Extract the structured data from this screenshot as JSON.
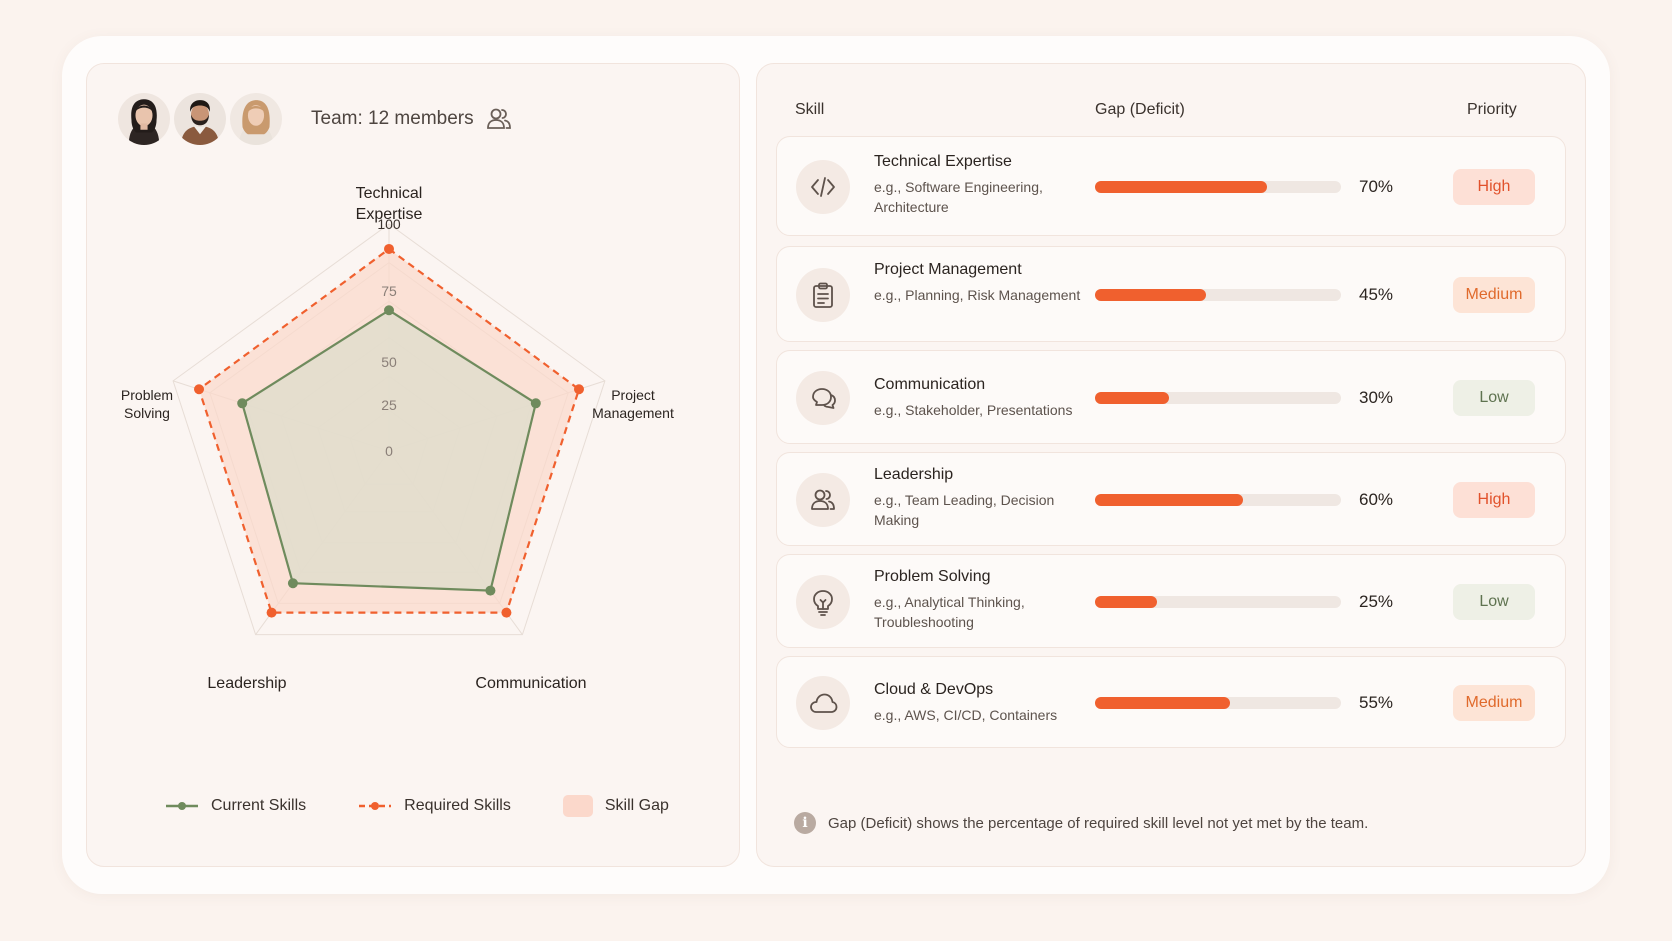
{
  "team": {
    "label": "Team: 12 members",
    "avatars": [
      "avatar-woman-1",
      "avatar-man",
      "avatar-woman-2"
    ],
    "icon": "users-icon"
  },
  "chart_data": {
    "type": "radar",
    "axes": [
      "Technical Expertise",
      "Project Management",
      "Communication",
      "Leadership",
      "Problem Solving"
    ],
    "axis_labels": [
      [
        "Technical",
        "Expertise"
      ],
      [
        "Project",
        "Management"
      ],
      [
        "Communication"
      ],
      [
        "Leadership"
      ],
      [
        "Problem",
        "Solving"
      ]
    ],
    "ticks": [
      0,
      25,
      50,
      75,
      100
    ],
    "range": [
      0,
      100
    ],
    "series": [
      {
        "name": "Current Skills",
        "values": [
          62,
          68,
          76,
          72,
          68
        ],
        "color": "#6f8b5d",
        "style": "solid"
      },
      {
        "name": "Required Skills",
        "values": [
          89,
          88,
          88,
          88,
          88
        ],
        "color": "#f0602e",
        "style": "dashed"
      }
    ],
    "gap_label": "Skill Gap",
    "gap_color": "#fbd8cb",
    "legend_position": "bottom"
  },
  "table": {
    "headers": {
      "skill": "Skill",
      "gap": "Gap (Deficit)",
      "priority": "Priority"
    },
    "rows": [
      {
        "icon": "code-icon",
        "title": "Technical Expertise",
        "desc": "e.g., Software Engineering, Architecture",
        "gap": 70,
        "gap_label": "70%",
        "priority": "High",
        "level": "high"
      },
      {
        "icon": "clipboard-icon",
        "title": "Project Management",
        "desc": "e.g., Planning, Risk Management",
        "gap": 45,
        "gap_label": "45%",
        "priority": "Medium",
        "level": "medium"
      },
      {
        "icon": "chat-bubbles-icon",
        "title": "Communication",
        "desc": "e.g., Stakeholder, Presentations",
        "gap": 30,
        "gap_label": "30%",
        "priority": "Low",
        "level": "low"
      },
      {
        "icon": "users-icon",
        "title": "Leadership",
        "desc": "e.g., Team Leading, Decision Making",
        "gap": 60,
        "gap_label": "60%",
        "priority": "High",
        "level": "high"
      },
      {
        "icon": "lightbulb-icon",
        "title": "Problem Solving",
        "desc": "e.g., Analytical Thinking, Troubleshooting",
        "gap": 25,
        "gap_label": "25%",
        "priority": "Low",
        "level": "low"
      },
      {
        "icon": "cloud-icon",
        "title": "Cloud & DevOps",
        "desc": "e.g., AWS, CI/CD, Containers",
        "gap": 55,
        "gap_label": "55%",
        "priority": "Medium",
        "level": "medium"
      }
    ]
  },
  "note": "Gap (Deficit) shows the percentage of required skill level not yet met by the team.",
  "colors": {
    "accent": "#f0602e",
    "current": "#6f8b5d",
    "gap_fill": "#fbd8cb",
    "background": "#fbf3ee"
  }
}
